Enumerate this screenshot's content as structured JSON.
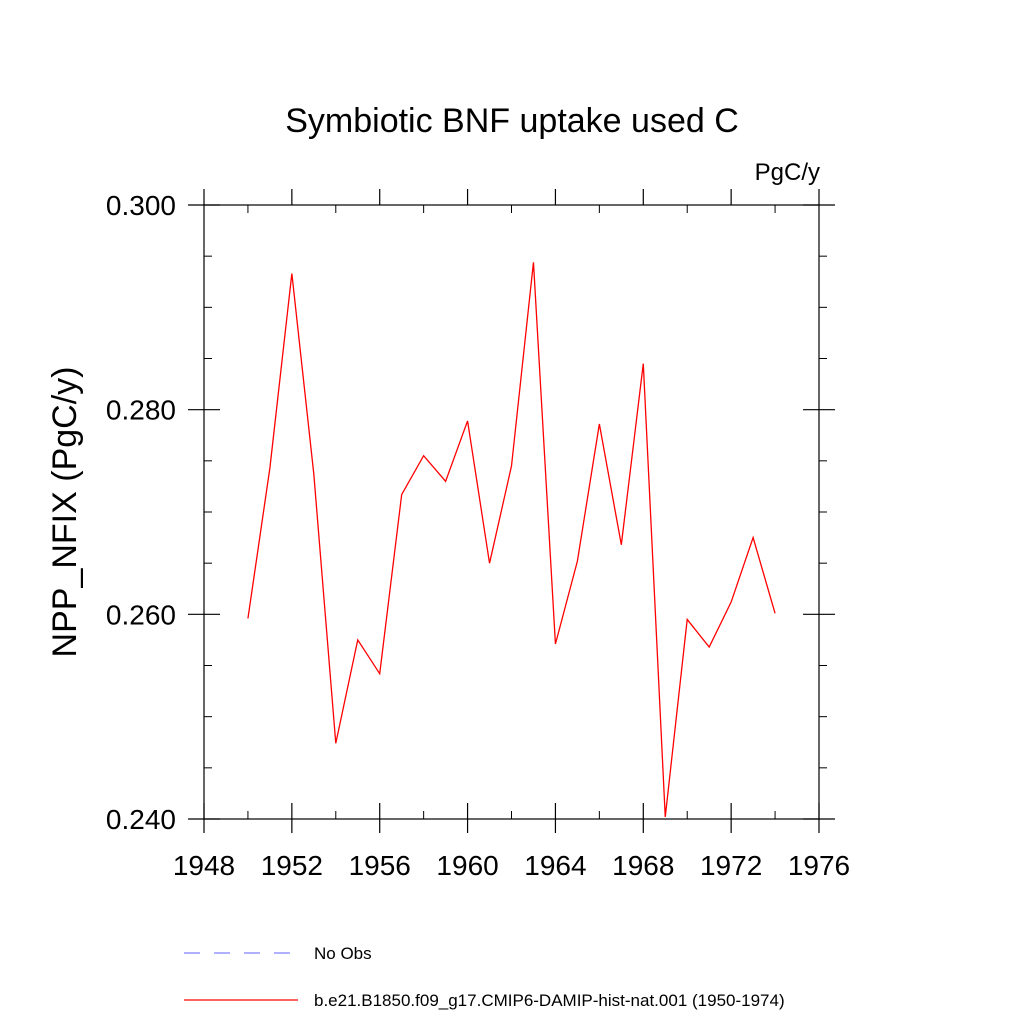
{
  "chart_data": {
    "type": "line",
    "title": "Symbiotic BNF uptake used C",
    "units_label": "PgC/y",
    "xlabel": "",
    "ylabel": "NPP_NFIX  (PgC/y)",
    "xlim": [
      1948,
      1976
    ],
    "ylim": [
      0.24,
      0.3
    ],
    "x_ticks": [
      1948,
      1952,
      1956,
      1960,
      1964,
      1968,
      1972,
      1976
    ],
    "y_ticks": [
      0.24,
      0.26,
      0.28,
      0.3
    ],
    "x_tick_labels": [
      "1948",
      "1952",
      "1956",
      "1960",
      "1964",
      "1968",
      "1972",
      "1976"
    ],
    "y_tick_labels": [
      "0.240",
      "0.260",
      "0.280",
      "0.300"
    ],
    "x_minor_step": 2,
    "y_minor_step": 0.005,
    "grid": false,
    "legend_position": "bottom",
    "series": [
      {
        "name": "b.e21.B1850.f09_g17.CMIP6-DAMIP-hist-nat.001 (1950-1974)",
        "color": "#ff0000",
        "style": "solid",
        "x": [
          1950,
          1951,
          1952,
          1953,
          1954,
          1955,
          1956,
          1957,
          1958,
          1959,
          1960,
          1961,
          1962,
          1963,
          1964,
          1965,
          1966,
          1967,
          1968,
          1969,
          1970,
          1971,
          1972,
          1973,
          1974
        ],
        "values": [
          0.2596,
          0.2743,
          0.2933,
          0.2737,
          0.2474,
          0.2575,
          0.2542,
          0.2717,
          0.2755,
          0.273,
          0.2789,
          0.265,
          0.2745,
          0.2944,
          0.2571,
          0.2652,
          0.2786,
          0.2668,
          0.2845,
          0.2402,
          0.2595,
          0.2568,
          0.2612,
          0.2675,
          0.2601
        ]
      }
    ],
    "legend": [
      {
        "label": "No Obs",
        "color": "#8080ff",
        "style": "dashed"
      },
      {
        "label": "b.e21.B1850.f09_g17.CMIP6-DAMIP-hist-nat.001 (1950-1974)",
        "color": "#ff0000",
        "style": "solid"
      }
    ]
  }
}
